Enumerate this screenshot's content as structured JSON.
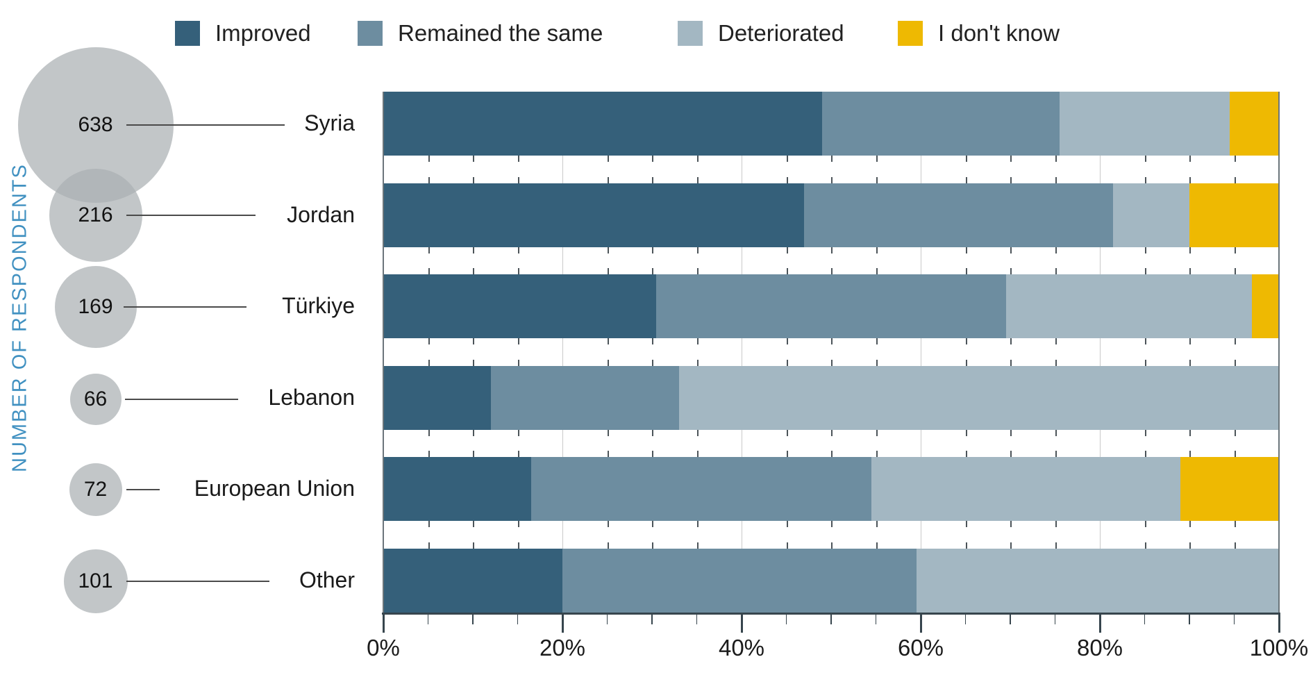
{
  "figure": {
    "y_axis_title": "NUMBER OF RESPONDENTS"
  },
  "legend": {
    "position": "top",
    "items": [
      {
        "label": "Improved",
        "color": "#35607a"
      },
      {
        "label": "Remained the same",
        "color": "#6d8da0"
      },
      {
        "label": "Deteriorated",
        "color": "#a3b7c2"
      },
      {
        "label": "I don't know",
        "color": "#eeb902"
      }
    ]
  },
  "bubble_axis": {
    "color": "rgba(171,176,179,0.72)",
    "values": [
      638,
      216,
      169,
      66,
      72,
      101
    ]
  },
  "chart_data": {
    "type": "bar",
    "subtype": "horizontal_stacked_100_percent",
    "title": "",
    "ylabel": "NUMBER OF RESPONDENTS",
    "xlabel": "",
    "categories": [
      "Syria",
      "Jordan",
      "Türkiye",
      "Lebanon",
      "European Union",
      "Other"
    ],
    "respondents": [
      638,
      216,
      169,
      66,
      72,
      101
    ],
    "series": [
      {
        "name": "Improved",
        "color": "#35607a",
        "values": [
          49,
          47,
          30.5,
          12,
          16.5,
          20
        ]
      },
      {
        "name": "Remained the same",
        "color": "#6d8da0",
        "values": [
          26.5,
          34.5,
          39,
          21,
          38,
          39.5
        ]
      },
      {
        "name": "Deteriorated",
        "color": "#a3b7c2",
        "values": [
          19,
          8.5,
          27.5,
          67,
          34.5,
          40.5
        ]
      },
      {
        "name": "I don't know",
        "color": "#eeb902",
        "values": [
          5.5,
          10,
          3,
          0,
          11,
          0
        ]
      }
    ],
    "x_ticks": [
      "0%",
      "20%",
      "40%",
      "60%",
      "80%",
      "100%"
    ],
    "xlim": [
      0,
      100
    ],
    "grid": "major vertical gridlines every 20%, minor ticks every 5%",
    "legend_position": "top",
    "accent_colors": {
      "axis_title_blue": "#4191c1",
      "axis_line": "#37454d",
      "leader_line": "#4a4a4a"
    }
  }
}
